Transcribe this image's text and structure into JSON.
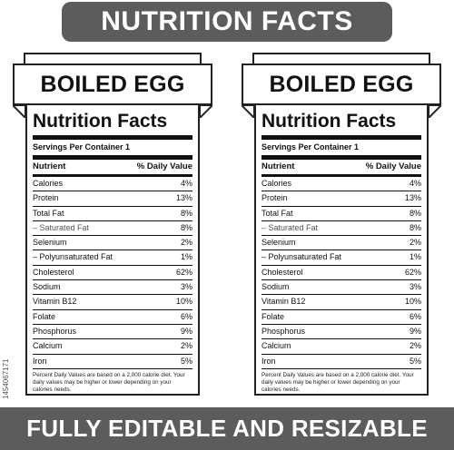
{
  "banner_top": "NUTRITION FACTS",
  "banner_bottom": "FULLY EDITABLE AND RESIZABLE",
  "side_id": "1454067171",
  "labels": [
    {
      "food_name": "BOILED EGG",
      "title": "Nutrition Facts",
      "servings": "Servings Per Container 1",
      "header_nutrient": "Nutrient",
      "header_dv": "% Daily Value",
      "rows": [
        {
          "name": "Calories",
          "value": "4%"
        },
        {
          "name": "Protein",
          "value": "13%"
        },
        {
          "name": "Total Fat",
          "value": "8%"
        },
        {
          "name": "– Saturated Fat",
          "value": "8%"
        },
        {
          "name": "Selenium",
          "value": "2%"
        },
        {
          "name": "– Polyunsaturated Fat",
          "value": "1%"
        },
        {
          "name": "Cholesterol",
          "value": "62%"
        },
        {
          "name": "Sodium",
          "value": "3%"
        },
        {
          "name": "Vitamin B12",
          "value": "10%"
        },
        {
          "name": "Folate",
          "value": "6%"
        },
        {
          "name": "Phosphorus",
          "value": "9%"
        },
        {
          "name": "Calcium",
          "value": "2%"
        },
        {
          "name": "Iron",
          "value": "5%"
        }
      ],
      "footnote": "Percent Daily Values are based on a 2,000 calorie diet. Your daily values may be higher or lower depending on your calories needs."
    },
    {
      "food_name": "BOILED EGG",
      "title": "Nutrition Facts",
      "servings": "Servings Per Container 1",
      "header_nutrient": "Nutrient",
      "header_dv": "% Daily Value",
      "rows": [
        {
          "name": "Calories",
          "value": "4%"
        },
        {
          "name": "Protein",
          "value": "13%"
        },
        {
          "name": "Total Fat",
          "value": "8%"
        },
        {
          "name": "– Saturated Fat",
          "value": "8%"
        },
        {
          "name": "Selenium",
          "value": "2%"
        },
        {
          "name": "– Polyunsaturated Fat",
          "value": "1%"
        },
        {
          "name": "Cholesterol",
          "value": "62%"
        },
        {
          "name": "Sodium",
          "value": "3%"
        },
        {
          "name": "Vitamin B12",
          "value": "10%"
        },
        {
          "name": "Folate",
          "value": "6%"
        },
        {
          "name": "Phosphorus",
          "value": "9%"
        },
        {
          "name": "Calcium",
          "value": "2%"
        },
        {
          "name": "Iron",
          "value": "5%"
        }
      ],
      "footnote": "Percent Daily Values are based on a 2,000 calorie diet. Your daily values may be higher or lower depending on your calories needs."
    }
  ]
}
